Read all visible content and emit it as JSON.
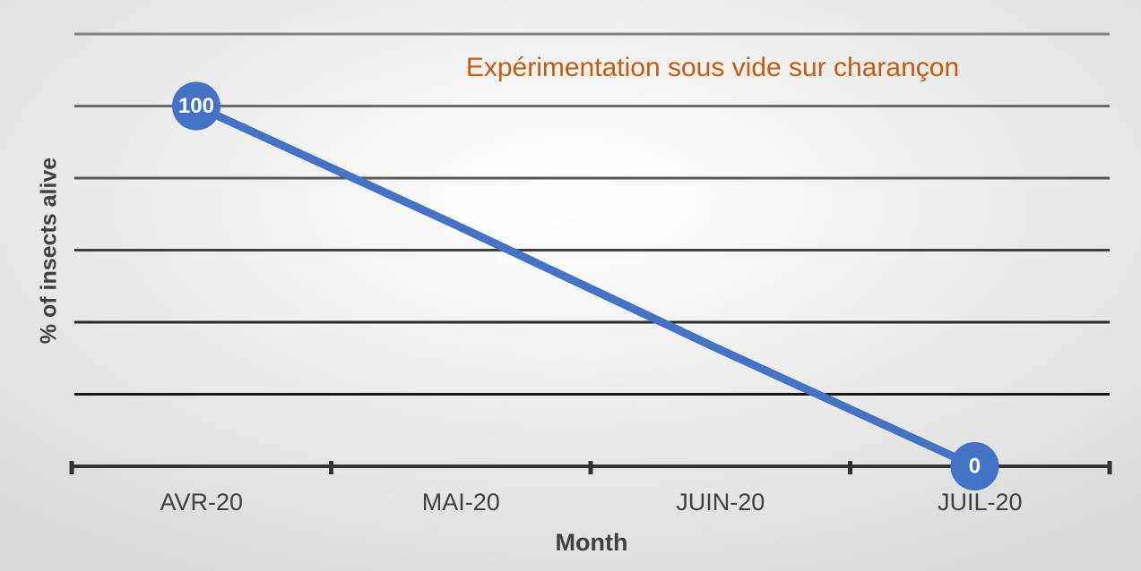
{
  "chart_data": {
    "type": "line",
    "title": "Expérimentation sous vide sur charançon",
    "x_label": "Month",
    "y_label": "% of insects alive",
    "categories": [
      "AVR-20",
      "MAI-20",
      "JUIN-20",
      "JUIL-20"
    ],
    "series": [
      {
        "name": "% of insects alive",
        "color": "#4472c4",
        "values": [
          100,
          67,
          33,
          0
        ],
        "value_labels": [
          "100",
          null,
          null,
          "0"
        ]
      }
    ],
    "ylim": [
      0,
      120
    ],
    "yticks": [
      0,
      20,
      40,
      60,
      80,
      100,
      120
    ],
    "grid": true
  }
}
